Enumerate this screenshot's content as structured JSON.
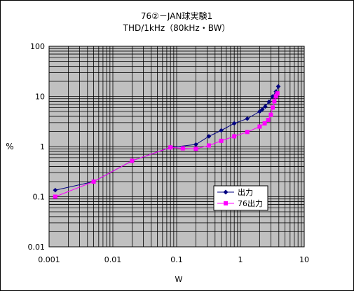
{
  "chart_data": {
    "type": "line",
    "title": "76②－JAN球実験1",
    "subtitle": "THD/1kHz（80kHz・BW）",
    "xlabel": "W",
    "ylabel": "%",
    "xscale": "log",
    "yscale": "log",
    "xlim": [
      0.001,
      10
    ],
    "ylim": [
      0.01,
      100
    ],
    "grid": true,
    "legend_position": "lower-right",
    "xticks": [
      "0.001",
      "0.01",
      "0.1",
      "1",
      "10"
    ],
    "yticks": [
      "100",
      "10",
      "1",
      "0.1",
      "0.01"
    ],
    "series": [
      {
        "name": "出力",
        "color": "#000080",
        "marker": "diamond",
        "points": [
          [
            0.00125,
            0.135
          ],
          [
            0.005,
            0.2
          ],
          [
            0.02,
            0.52
          ],
          [
            0.08,
            0.96
          ],
          [
            0.2,
            1.1
          ],
          [
            0.32,
            1.6
          ],
          [
            0.5,
            2.1
          ],
          [
            0.8,
            2.9
          ],
          [
            1.28,
            3.6
          ],
          [
            2.0,
            5.0
          ],
          [
            2.2,
            5.5
          ],
          [
            2.45,
            6.3
          ],
          [
            2.8,
            7.8
          ],
          [
            3.2,
            10.0
          ],
          [
            3.6,
            12.5
          ],
          [
            3.92,
            15.8
          ]
        ]
      },
      {
        "name": "76出力",
        "color": "#ff00ff",
        "marker": "square",
        "points": [
          [
            0.00125,
            0.1
          ],
          [
            0.005,
            0.2
          ],
          [
            0.02,
            0.52
          ],
          [
            0.08,
            0.96
          ],
          [
            0.125,
            0.92
          ],
          [
            0.2,
            0.9
          ],
          [
            0.32,
            1.05
          ],
          [
            0.5,
            1.3
          ],
          [
            0.8,
            1.6
          ],
          [
            1.28,
            1.95
          ],
          [
            2.0,
            2.5
          ],
          [
            2.4,
            2.9
          ],
          [
            2.72,
            3.4
          ],
          [
            3.0,
            4.3
          ],
          [
            3.2,
            6.0
          ],
          [
            3.4,
            8.0
          ],
          [
            3.6,
            10.0
          ],
          [
            3.8,
            11.5
          ]
        ]
      }
    ]
  }
}
